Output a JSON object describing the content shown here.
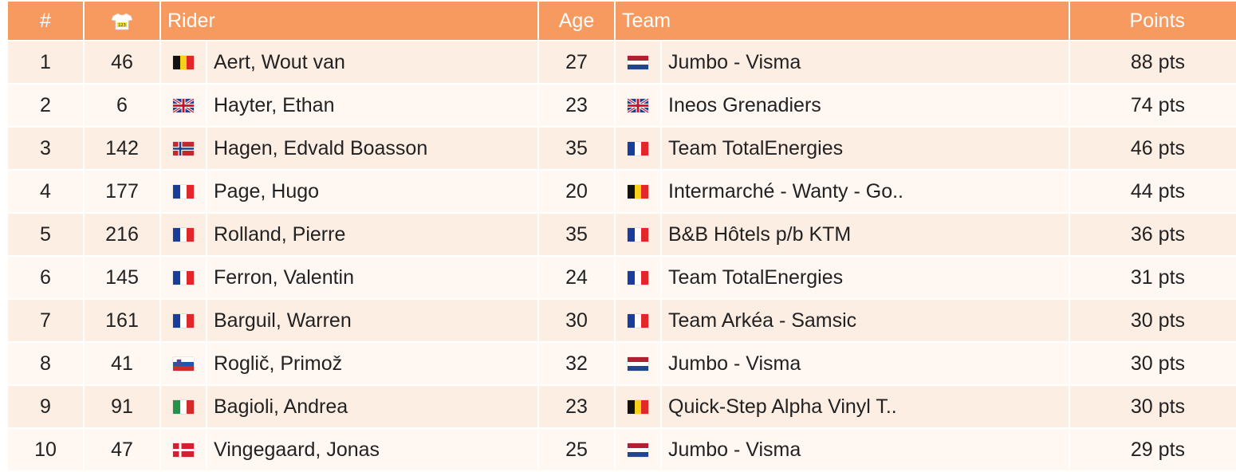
{
  "header": {
    "rank": "#",
    "jersey_icon": "jersey-123-icon",
    "rider": "Rider",
    "age": "Age",
    "team": "Team",
    "points": "Points"
  },
  "colors": {
    "header_bg": "#f79a60",
    "row_odd": "#fdeee4",
    "row_even": "#fff7f2"
  },
  "rows": [
    {
      "rank": "1",
      "bib": "46",
      "rider_flag": "be",
      "rider": "Aert, Wout van",
      "age": "27",
      "team_flag": "nl",
      "team": "Jumbo - Visma",
      "points": "88 pts"
    },
    {
      "rank": "2",
      "bib": "6",
      "rider_flag": "gb",
      "rider": "Hayter, Ethan",
      "age": "23",
      "team_flag": "gb",
      "team": "Ineos Grenadiers",
      "points": "74 pts"
    },
    {
      "rank": "3",
      "bib": "142",
      "rider_flag": "no",
      "rider": "Hagen, Edvald Boasson",
      "age": "35",
      "team_flag": "fr",
      "team": "Team TotalEnergies",
      "points": "46 pts"
    },
    {
      "rank": "4",
      "bib": "177",
      "rider_flag": "fr",
      "rider": "Page, Hugo",
      "age": "20",
      "team_flag": "be",
      "team": "Intermarché - Wanty - Go..",
      "points": "44 pts"
    },
    {
      "rank": "5",
      "bib": "216",
      "rider_flag": "fr",
      "rider": "Rolland, Pierre",
      "age": "35",
      "team_flag": "fr",
      "team": "B&B Hôtels p/b KTM",
      "points": "36 pts"
    },
    {
      "rank": "6",
      "bib": "145",
      "rider_flag": "fr",
      "rider": "Ferron, Valentin",
      "age": "24",
      "team_flag": "fr",
      "team": "Team TotalEnergies",
      "points": "31 pts"
    },
    {
      "rank": "7",
      "bib": "161",
      "rider_flag": "fr",
      "rider": "Barguil, Warren",
      "age": "30",
      "team_flag": "fr",
      "team": "Team Arkéa - Samsic",
      "points": "30 pts"
    },
    {
      "rank": "8",
      "bib": "41",
      "rider_flag": "si",
      "rider": "Roglič, Primož",
      "age": "32",
      "team_flag": "nl",
      "team": "Jumbo - Visma",
      "points": "30 pts"
    },
    {
      "rank": "9",
      "bib": "91",
      "rider_flag": "it",
      "rider": "Bagioli, Andrea",
      "age": "23",
      "team_flag": "be",
      "team": "Quick-Step Alpha Vinyl T..",
      "points": "30 pts"
    },
    {
      "rank": "10",
      "bib": "47",
      "rider_flag": "dk",
      "rider": "Vingegaard, Jonas",
      "age": "25",
      "team_flag": "nl",
      "team": "Jumbo - Visma",
      "points": "29 pts"
    }
  ]
}
